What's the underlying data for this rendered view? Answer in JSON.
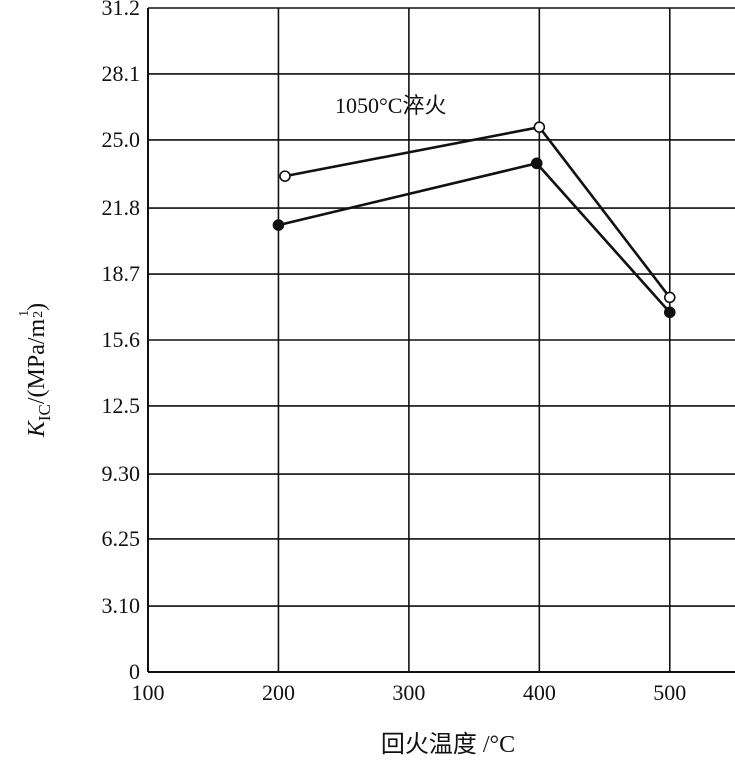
{
  "chart_data": {
    "type": "line",
    "x_ticks": [
      "100",
      "200",
      "300",
      "400",
      "500"
    ],
    "y_ticks": [
      "0",
      "3.10",
      "6.25",
      "9.30",
      "12.5",
      "15.6",
      "18.7",
      "21.8",
      "25.0",
      "28.1",
      "31.2"
    ],
    "xlim": [
      100,
      550
    ],
    "ylim": [
      0,
      31.2
    ],
    "xlabel": "回火温度 /°C",
    "ylabel": {
      "k": "K",
      "sub": "IC",
      "rest": "/(MPa/m",
      "exp_num": "1",
      "exp_den": "2",
      "close": ")"
    },
    "annotation": "1050°C淬火",
    "grid": true,
    "series": [
      {
        "marker": "open-circle",
        "color": "#111111",
        "x": [
          205,
          400,
          500
        ],
        "y": [
          23.3,
          25.6,
          17.6
        ]
      },
      {
        "marker": "filled-circle",
        "color": "#111111",
        "x": [
          200,
          398,
          500
        ],
        "y": [
          21.0,
          23.9,
          16.9
        ]
      }
    ]
  }
}
